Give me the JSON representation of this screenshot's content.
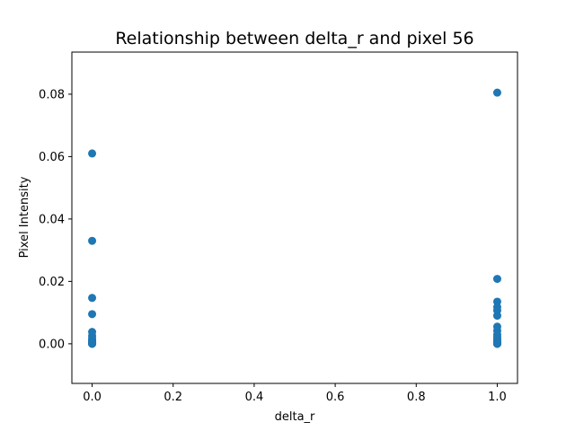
{
  "chart_data": {
    "type": "scatter",
    "title": "Relationship between delta_r and pixel 56",
    "xlabel": "delta_r",
    "ylabel": "Pixel Intensity",
    "xlim": [
      -0.05,
      1.05
    ],
    "ylim": [
      -0.0127,
      0.0935
    ],
    "xticks": [
      0.0,
      0.2,
      0.4,
      0.6,
      0.8,
      1.0
    ],
    "xtick_labels": [
      "0.0",
      "0.2",
      "0.4",
      "0.6",
      "0.8",
      "1.0"
    ],
    "yticks": [
      0.0,
      0.02,
      0.04,
      0.06,
      0.08
    ],
    "ytick_labels": [
      "0.00",
      "0.02",
      "0.04",
      "0.06",
      "0.08"
    ],
    "grid": false,
    "marker_color": "#1f77b4",
    "series": [
      {
        "x": [
          0,
          0,
          0,
          0,
          0,
          0,
          0,
          0,
          0,
          0,
          0,
          0,
          0,
          0,
          0,
          0,
          1,
          1,
          1,
          1,
          1,
          1,
          1,
          1,
          1,
          1,
          1,
          1,
          1,
          1,
          1,
          1,
          1,
          1,
          1,
          1
        ],
        "y": [
          0.061,
          0.033,
          0.0147,
          0.0095,
          0.0038,
          0.0025,
          0.0017,
          0.0012,
          0.0008,
          0.0005,
          0.0003,
          0.0002,
          0.0001,
          0.0,
          0.0,
          0.0,
          0.0805,
          0.0208,
          0.0135,
          0.0118,
          0.0107,
          0.009,
          0.0055,
          0.0042,
          0.003,
          0.0022,
          0.0016,
          0.0011,
          0.0007,
          0.0004,
          0.0002,
          0.0001,
          0.0,
          0.0,
          0.0,
          0.0
        ]
      }
    ]
  }
}
